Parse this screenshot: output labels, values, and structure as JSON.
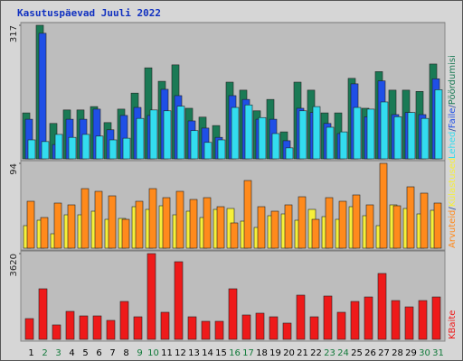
{
  "chart_data": {
    "type": "bar",
    "title": "Kasutuspäevad Juuli 2022",
    "legend_separator": "/",
    "categories": [
      "1",
      "2",
      "3",
      "4",
      "5",
      "6",
      "7",
      "8",
      "9",
      "10",
      "11",
      "12",
      "13",
      "14",
      "15",
      "16",
      "17",
      "18",
      "19",
      "20",
      "21",
      "22",
      "23",
      "24",
      "25",
      "26",
      "27",
      "28",
      "29",
      "30",
      "31"
    ],
    "category_colors": [
      "#000000",
      "#117a3a",
      "#117a3a",
      "#000000",
      "#000000",
      "#000000",
      "#000000",
      "#000000",
      "#117a3a",
      "#117a3a",
      "#000000",
      "#000000",
      "#000000",
      "#000000",
      "#000000",
      "#117a3a",
      "#117a3a",
      "#000000",
      "#000000",
      "#000000",
      "#000000",
      "#000000",
      "#117a3a",
      "#117a3a",
      "#000000",
      "#000000",
      "#000000",
      "#000000",
      "#000000",
      "#117a3a",
      "#117a3a"
    ],
    "panels": [
      {
        "ylim": [
          0,
          317
        ],
        "yticks": [
          317
        ],
        "series": [
          {
            "name": "Pöördumisi",
            "color": "#1a7a55",
            "values": [
              109,
              317,
              84,
              116,
              116,
              124,
              86,
              118,
              156,
              216,
              184,
              223,
              120,
              99,
              79,
              182,
              163,
              114,
              141,
              64,
              182,
              163,
              109,
              109,
              191,
              120,
              207,
              163,
              163,
              160,
              225
            ]
          },
          {
            "name": "Faile",
            "color": "#1f4fe6",
            "values": [
              94,
              298,
              34,
              94,
              94,
              118,
              69,
              103,
              122,
              103,
              165,
              150,
              90,
              73,
              51,
              150,
              141,
              94,
              94,
              43,
              120,
              110,
              84,
              60,
              178,
              100,
              185,
              105,
              110,
              105,
              190
            ]
          },
          {
            "name": "Lehed",
            "color": "#33dcef",
            "values": [
              45,
              41,
              58,
              51,
              58,
              54,
              45,
              49,
              96,
              116,
              114,
              125,
              67,
              39,
              45,
              122,
              128,
              98,
              60,
              26,
              114,
              124,
              75,
              64,
              122,
              118,
              135,
              100,
              110,
              96,
              164
            ]
          }
        ]
      },
      {
        "ylim": [
          0,
          94
        ],
        "yticks": [
          94
        ],
        "series": [
          {
            "name": "Külastused",
            "color": "#f6f03a",
            "values": [
              25,
              31,
              16,
              37,
              37,
              41,
              32,
              33,
              46,
              43,
              47,
              37,
              41,
              34,
              43,
              44,
              30,
              23,
              36,
              38,
              31,
              43,
              35,
              32,
              46,
              36,
              25,
              48,
              44,
              38,
              42
            ]
          },
          {
            "name": "Arvuteid",
            "color": "#ff8a1c",
            "values": [
              52,
              34,
              50,
              48,
              66,
              63,
              58,
              32,
              52,
              66,
              56,
              63,
              54,
              56,
              46,
              28,
              75,
              46,
              41,
              48,
              57,
              32,
              56,
              52,
              59,
              48,
              94,
              47,
              68,
              61,
              50
            ]
          }
        ]
      },
      {
        "ylim": [
          0,
          3620
        ],
        "yticks": [
          3620
        ],
        "series": [
          {
            "name": "KBaite",
            "color": "#ee1a1a",
            "values": [
              876,
              2134,
              610,
              1181,
              990,
              990,
              800,
              1600,
              952,
              3620,
              1143,
              3277,
              952,
              762,
              762,
              2134,
              1029,
              1105,
              952,
              686,
              1867,
              952,
              1829,
              1143,
              1600,
              1790,
              2781,
              1638,
              1371,
              1638,
              1790
            ]
          }
        ]
      }
    ]
  }
}
